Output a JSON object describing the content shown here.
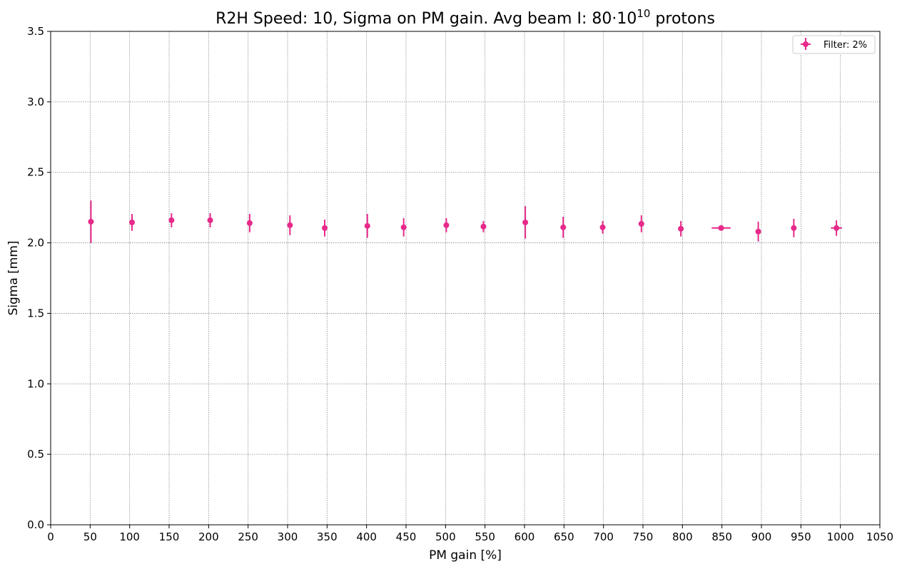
{
  "chart_data": {
    "type": "scatter",
    "title": "R2H Speed: 10, Sigma on PM gain. Avg beam I: 80·10",
    "title_exponent": "10",
    "title_suffix": " protons",
    "xlabel": "PM gain [%]",
    "ylabel": "Sigma [mm]",
    "xlim": [
      0,
      1050
    ],
    "ylim": [
      0,
      3.5
    ],
    "xticks": [
      0,
      50,
      100,
      150,
      200,
      250,
      300,
      350,
      400,
      450,
      500,
      550,
      600,
      650,
      700,
      750,
      800,
      850,
      900,
      950,
      1000,
      1050
    ],
    "yticks": [
      0.0,
      0.5,
      1.0,
      1.5,
      2.0,
      2.5,
      3.0,
      3.5
    ],
    "ytick_labels": [
      "0.0",
      "0.5",
      "1.0",
      "1.5",
      "2.0",
      "2.5",
      "3.0",
      "3.5"
    ],
    "grid": true,
    "legend_position": "top-right",
    "color": "#e7298a",
    "series": [
      {
        "name": "Filter: 2%",
        "points": [
          {
            "x": 51,
            "y": 2.15,
            "yerr": 0.15,
            "xerr": 0
          },
          {
            "x": 103,
            "y": 2.145,
            "yerr": 0.06,
            "xerr": 0
          },
          {
            "x": 153,
            "y": 2.16,
            "yerr": 0.05,
            "xerr": 0
          },
          {
            "x": 202,
            "y": 2.16,
            "yerr": 0.05,
            "xerr": 0
          },
          {
            "x": 252,
            "y": 2.14,
            "yerr": 0.065,
            "xerr": 0
          },
          {
            "x": 303,
            "y": 2.125,
            "yerr": 0.07,
            "xerr": 0
          },
          {
            "x": 347,
            "y": 2.105,
            "yerr": 0.06,
            "xerr": 0
          },
          {
            "x": 401,
            "y": 2.12,
            "yerr": 0.085,
            "xerr": 0
          },
          {
            "x": 447,
            "y": 2.11,
            "yerr": 0.065,
            "xerr": 0
          },
          {
            "x": 501,
            "y": 2.125,
            "yerr": 0.05,
            "xerr": 0
          },
          {
            "x": 548,
            "y": 2.115,
            "yerr": 0.04,
            "xerr": 0
          },
          {
            "x": 601,
            "y": 2.145,
            "yerr": 0.115,
            "xerr": 0
          },
          {
            "x": 649,
            "y": 2.11,
            "yerr": 0.075,
            "xerr": 0
          },
          {
            "x": 699,
            "y": 2.11,
            "yerr": 0.045,
            "xerr": 0
          },
          {
            "x": 748,
            "y": 2.135,
            "yerr": 0.06,
            "xerr": 0
          },
          {
            "x": 798,
            "y": 2.1,
            "yerr": 0.055,
            "xerr": 0
          },
          {
            "x": 849,
            "y": 2.105,
            "yerr": 0.015,
            "xerr": 12
          },
          {
            "x": 896,
            "y": 2.08,
            "yerr": 0.07,
            "xerr": 0
          },
          {
            "x": 941,
            "y": 2.105,
            "yerr": 0.065,
            "xerr": 0
          },
          {
            "x": 995,
            "y": 2.105,
            "yerr": 0.055,
            "xerr": 7
          }
        ]
      }
    ]
  }
}
